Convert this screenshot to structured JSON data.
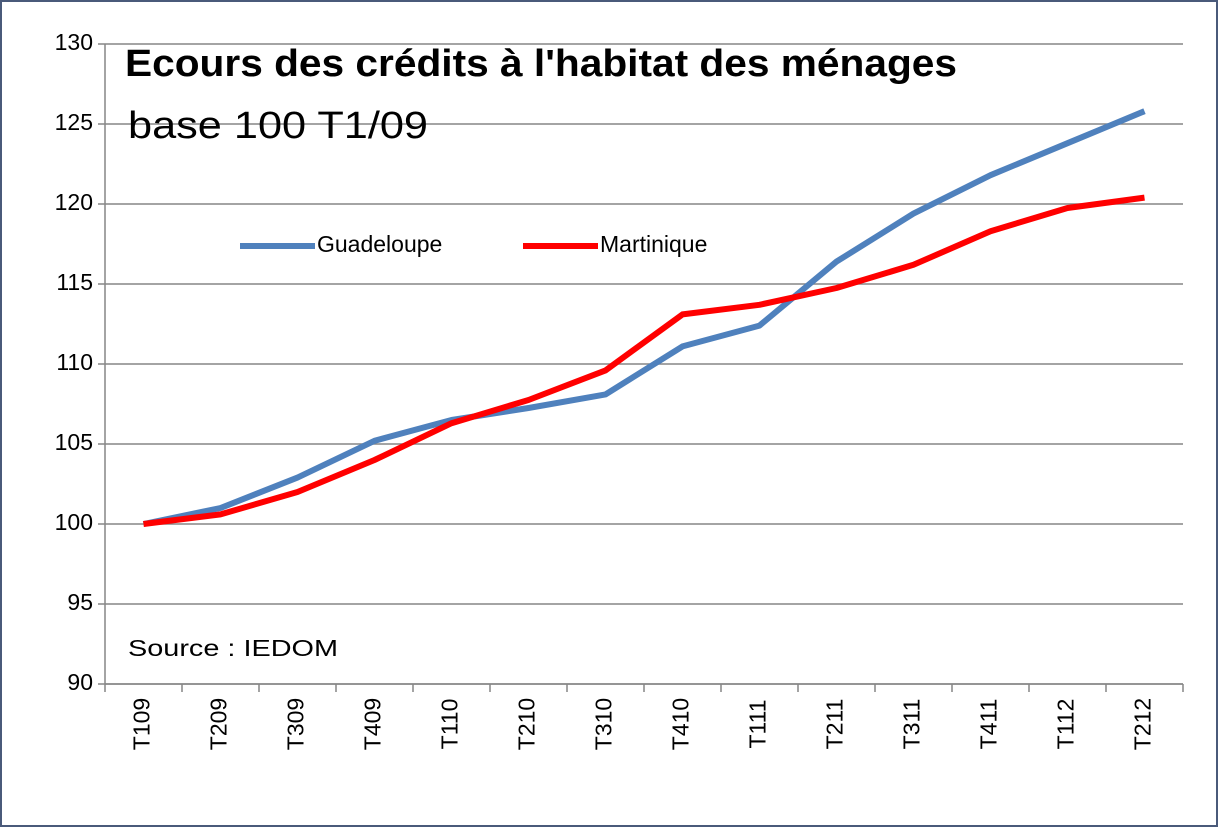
{
  "chart_data": {
    "type": "line",
    "title": "Ecours des crédits à l'habitat des ménages",
    "subtitle": "base 100 T1/09",
    "annotation": "Source : IEDOM",
    "categories": [
      "T109",
      "T209",
      "T309",
      "T409",
      "T110",
      "T210",
      "T310",
      "T410",
      "T111",
      "T211",
      "T311",
      "T411",
      "T112",
      "T212"
    ],
    "series": [
      {
        "name": "Guadeloupe",
        "color": "#4f81bd",
        "values": [
          100,
          101.0,
          102.9,
          105.2,
          106.5,
          107.25,
          108.1,
          111.1,
          112.4,
          116.4,
          119.4,
          121.8,
          123.8,
          125.8
        ]
      },
      {
        "name": "Martinique",
        "color": "#ff0000",
        "values": [
          100,
          100.6,
          102.0,
          104.0,
          106.3,
          107.75,
          109.6,
          113.1,
          113.7,
          114.75,
          116.2,
          118.3,
          119.75,
          120.4
        ]
      }
    ],
    "ylim": [
      90,
      130
    ],
    "yticks": [
      90,
      95,
      100,
      105,
      110,
      115,
      120,
      125,
      130
    ],
    "grid": true,
    "legend": "top"
  }
}
